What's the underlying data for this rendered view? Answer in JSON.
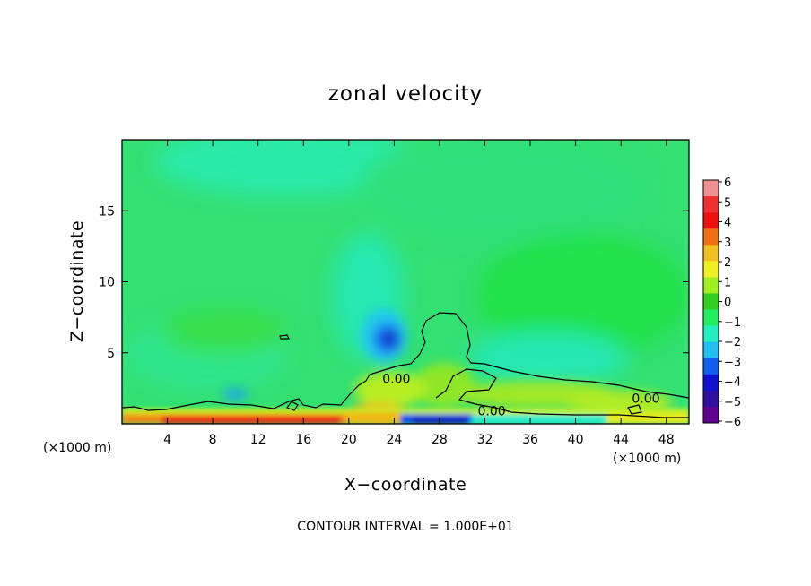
{
  "chart_data": {
    "type": "heatmap",
    "title": "zonal velocity",
    "xlabel": "X−coordinate",
    "ylabel": "Z−coordinate",
    "x_unit_left": "(×1000 m)",
    "x_unit_right": "(×1000 m)",
    "xlim": [
      0,
      50
    ],
    "ylim": [
      0,
      20
    ],
    "x_ticks": [
      4,
      8,
      12,
      16,
      20,
      24,
      28,
      32,
      36,
      40,
      44,
      48
    ],
    "y_ticks": [
      5,
      10,
      15
    ],
    "colorbar": {
      "levels": [
        "6",
        "5",
        "4",
        "3",
        "2",
        "1",
        "0",
        "−1",
        "−2",
        "−3",
        "−4",
        "−5",
        "−6"
      ],
      "range": [
        -6,
        6
      ],
      "colors": [
        "#f09090",
        "#f03030",
        "#f01010",
        "#f07010",
        "#f0c020",
        "#f0f020",
        "#a0f020",
        "#30d020",
        "#20f060",
        "#20f0c0",
        "#20c0f0",
        "#1060f0",
        "#1010d0",
        "#3010a0",
        "#600090"
      ]
    },
    "contour_labels": [
      {
        "text": "0.00",
        "x": 24.2,
        "y": 3.2
      },
      {
        "text": "0.00",
        "x": 32.6,
        "y": 0.9
      },
      {
        "text": "0.00",
        "x": 46.2,
        "y": 1.8
      }
    ],
    "footer": "CONTOUR INTERVAL = 1.000E+01",
    "grid": false
  }
}
